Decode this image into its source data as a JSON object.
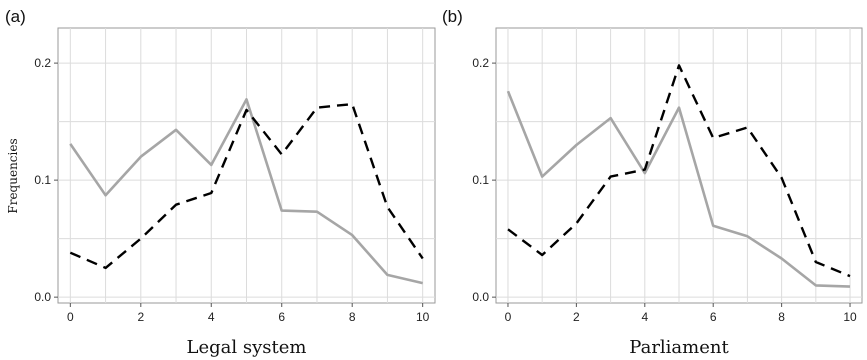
{
  "chart_data": [
    {
      "panel": "(a)",
      "type": "line",
      "xlabel": "Legal system",
      "ylabel": "Frequencies",
      "xlim": [
        -0.35,
        10.35
      ],
      "ylim": [
        -0.005,
        0.23
      ],
      "x_ticks": [
        0,
        2,
        4,
        6,
        8,
        10
      ],
      "y_ticks": [
        0.0,
        0.1,
        0.2
      ],
      "y_tick_labels": [
        "0.0",
        "0.1",
        "0.2"
      ],
      "grid": true,
      "x": [
        0,
        1,
        2,
        3,
        4,
        5,
        6,
        7,
        8,
        9,
        10
      ],
      "series": [
        {
          "style": "solid",
          "color": "#a6a6a6",
          "values": [
            0.131,
            0.087,
            0.12,
            0.143,
            0.113,
            0.169,
            0.074,
            0.073,
            0.053,
            0.019,
            0.012
          ]
        },
        {
          "style": "dashed",
          "color": "#000000",
          "values": [
            0.038,
            0.025,
            0.05,
            0.079,
            0.089,
            0.16,
            0.122,
            0.162,
            0.165,
            0.077,
            0.033
          ]
        }
      ]
    },
    {
      "panel": "(b)",
      "type": "line",
      "xlabel": "Parliament",
      "ylabel": "",
      "xlim": [
        -0.35,
        10.35
      ],
      "ylim": [
        -0.005,
        0.23
      ],
      "x_ticks": [
        0,
        2,
        4,
        6,
        8,
        10
      ],
      "y_ticks": [
        0.0,
        0.1,
        0.2
      ],
      "y_tick_labels": [
        "0.0",
        "0.1",
        "0.2"
      ],
      "grid": true,
      "x": [
        0,
        1,
        2,
        3,
        4,
        5,
        6,
        7,
        8,
        9,
        10
      ],
      "series": [
        {
          "style": "solid",
          "color": "#a6a6a6",
          "values": [
            0.176,
            0.103,
            0.13,
            0.153,
            0.106,
            0.162,
            0.061,
            0.052,
            0.033,
            0.01,
            0.009
          ]
        },
        {
          "style": "dashed",
          "color": "#000000",
          "values": [
            0.058,
            0.036,
            0.063,
            0.103,
            0.109,
            0.198,
            0.136,
            0.145,
            0.102,
            0.03,
            0.018
          ]
        }
      ]
    }
  ]
}
